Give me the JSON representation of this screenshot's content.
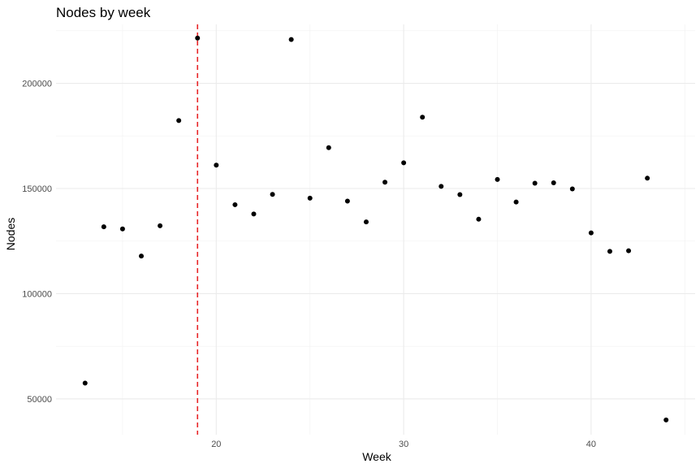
{
  "chart_data": {
    "type": "scatter",
    "title": "Nodes by week",
    "xlabel": "Week",
    "ylabel": "Nodes",
    "xlim": [
      11.45,
      45.55
    ],
    "ylim": [
      33000,
      228000
    ],
    "x_ticks": [
      20,
      30,
      40
    ],
    "x_tick_labels": [
      "20",
      "30",
      "40"
    ],
    "x_minor_ticks": [
      15,
      25,
      35,
      45
    ],
    "y_ticks": [
      50000,
      100000,
      150000,
      200000
    ],
    "y_tick_labels": [
      "50000",
      "100000",
      "150000",
      "200000"
    ],
    "y_minor_ticks": [
      75000,
      125000,
      175000,
      225000
    ],
    "grid": true,
    "point_color": "#000000",
    "reference_line": {
      "x": 19,
      "color": "#e8272a",
      "style": "dashed"
    },
    "points": [
      {
        "x": 13,
        "y": 57500
      },
      {
        "x": 14,
        "y": 131800
      },
      {
        "x": 15,
        "y": 130800
      },
      {
        "x": 16,
        "y": 117900
      },
      {
        "x": 17,
        "y": 132300
      },
      {
        "x": 18,
        "y": 182300
      },
      {
        "x": 19,
        "y": 221500
      },
      {
        "x": 20,
        "y": 161100
      },
      {
        "x": 21,
        "y": 142300
      },
      {
        "x": 22,
        "y": 137900
      },
      {
        "x": 23,
        "y": 147200
      },
      {
        "x": 24,
        "y": 220800
      },
      {
        "x": 25,
        "y": 145400
      },
      {
        "x": 26,
        "y": 169400
      },
      {
        "x": 27,
        "y": 144000
      },
      {
        "x": 28,
        "y": 134100
      },
      {
        "x": 29,
        "y": 153000
      },
      {
        "x": 30,
        "y": 162200
      },
      {
        "x": 31,
        "y": 183900
      },
      {
        "x": 32,
        "y": 151000
      },
      {
        "x": 33,
        "y": 147100
      },
      {
        "x": 34,
        "y": 135400
      },
      {
        "x": 35,
        "y": 154300
      },
      {
        "x": 36,
        "y": 143600
      },
      {
        "x": 37,
        "y": 152500
      },
      {
        "x": 38,
        "y": 152700
      },
      {
        "x": 39,
        "y": 149800
      },
      {
        "x": 40,
        "y": 128900
      },
      {
        "x": 41,
        "y": 120100
      },
      {
        "x": 42,
        "y": 120400
      },
      {
        "x": 43,
        "y": 154900
      },
      {
        "x": 44,
        "y": 40000
      }
    ]
  }
}
